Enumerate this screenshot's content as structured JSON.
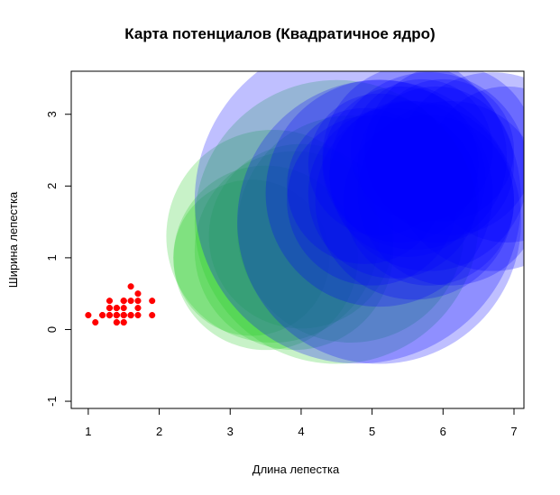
{
  "chart_data": {
    "type": "scatter",
    "title": "Карта потенциалов (Квадратичное ядро)",
    "xlabel": "Длина лепестка",
    "ylabel": "Ширина лепестка",
    "xlim": [
      0.76,
      7.14
    ],
    "ylim": [
      -1.1,
      3.6
    ],
    "xticks": [
      1,
      2,
      3,
      4,
      5,
      6,
      7
    ],
    "yticks": [
      -1,
      0,
      1,
      2,
      3
    ],
    "grid": false,
    "colors": {
      "setosa": "#ff0000",
      "versicolor": "#22cc22",
      "virginica": "#0000ff"
    },
    "series": [
      {
        "color": "#ff0000",
        "marker": "point",
        "points": [
          [
            1.4,
            0.2
          ],
          [
            1.4,
            0.2
          ],
          [
            1.3,
            0.2
          ],
          [
            1.5,
            0.2
          ],
          [
            1.4,
            0.2
          ],
          [
            1.7,
            0.4
          ],
          [
            1.4,
            0.3
          ],
          [
            1.5,
            0.2
          ],
          [
            1.4,
            0.2
          ],
          [
            1.5,
            0.1
          ],
          [
            1.5,
            0.2
          ],
          [
            1.6,
            0.2
          ],
          [
            1.4,
            0.1
          ],
          [
            1.1,
            0.1
          ],
          [
            1.2,
            0.2
          ],
          [
            1.5,
            0.4
          ],
          [
            1.3,
            0.4
          ],
          [
            1.4,
            0.3
          ],
          [
            1.7,
            0.3
          ],
          [
            1.5,
            0.3
          ],
          [
            1.7,
            0.2
          ],
          [
            1.5,
            0.4
          ],
          [
            1.0,
            0.2
          ],
          [
            1.7,
            0.5
          ],
          [
            1.9,
            0.2
          ],
          [
            1.6,
            0.2
          ],
          [
            1.6,
            0.4
          ],
          [
            1.5,
            0.2
          ],
          [
            1.4,
            0.2
          ],
          [
            1.6,
            0.2
          ],
          [
            1.6,
            0.2
          ],
          [
            1.5,
            0.4
          ],
          [
            1.5,
            0.1
          ],
          [
            1.4,
            0.2
          ],
          [
            1.5,
            0.2
          ],
          [
            1.2,
            0.2
          ],
          [
            1.3,
            0.2
          ],
          [
            1.4,
            0.1
          ],
          [
            1.3,
            0.2
          ],
          [
            1.5,
            0.2
          ],
          [
            1.3,
            0.3
          ],
          [
            1.3,
            0.3
          ],
          [
            1.3,
            0.2
          ],
          [
            1.6,
            0.6
          ],
          [
            1.9,
            0.4
          ],
          [
            1.4,
            0.3
          ],
          [
            1.6,
            0.2
          ],
          [
            1.4,
            0.2
          ],
          [
            1.5,
            0.2
          ],
          [
            1.4,
            0.2
          ]
        ]
      },
      {
        "color": "#22cc22",
        "marker": "potential",
        "points": [
          [
            3.5,
            1.0,
            1.3
          ],
          [
            3.9,
            1.1,
            1.4
          ],
          [
            3.3,
            1.0,
            1.1
          ],
          [
            3.6,
            1.3,
            1.5
          ],
          [
            4.0,
            1.3,
            1.3
          ],
          [
            4.5,
            1.5,
            2.0
          ],
          [
            4.7,
            1.4,
            1.6
          ]
        ]
      },
      {
        "color": "#0000ff",
        "marker": "potential",
        "points": [
          [
            4.8,
            1.8,
            2.3
          ],
          [
            5.1,
            1.5,
            2.0
          ],
          [
            5.0,
            1.8,
            1.2
          ],
          [
            5.1,
            1.9,
            1.6
          ],
          [
            4.9,
            2.0,
            1.1
          ],
          [
            5.6,
            1.8,
            1.4
          ],
          [
            5.8,
            2.2,
            1.4
          ],
          [
            6.1,
            2.5,
            1.2
          ],
          [
            5.6,
            2.4,
            1.3
          ],
          [
            5.5,
            2.1,
            1.1
          ],
          [
            5.8,
            1.8,
            1.2
          ],
          [
            6.0,
            2.5,
            1.0
          ],
          [
            6.7,
            2.2,
            1.4
          ],
          [
            6.9,
            2.3,
            1.1
          ],
          [
            5.1,
            2.3,
            1.0
          ],
          [
            5.3,
            1.9,
            1.2
          ],
          [
            5.4,
            2.3,
            1.1
          ],
          [
            5.7,
            2.5,
            1.0
          ],
          [
            6.1,
            1.9,
            1.3
          ],
          [
            5.9,
            2.3,
            1.1
          ]
        ]
      }
    ]
  }
}
